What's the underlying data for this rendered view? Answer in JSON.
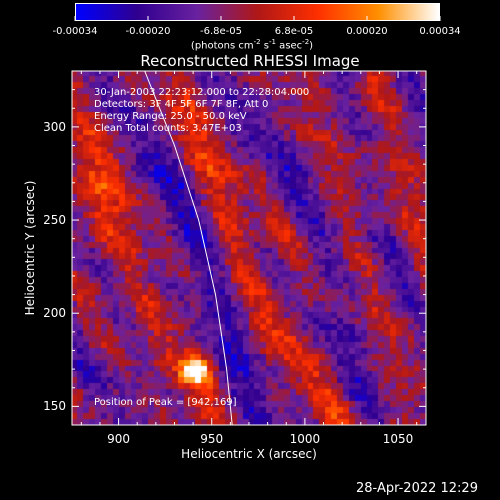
{
  "colorbar": {
    "labels": [
      "-0.00034",
      "-0.00020",
      "-6.8e-05",
      "6.8e-05",
      "0.00020",
      "0.00034"
    ],
    "units_text": "(photons cm",
    "units_exp1": "-2",
    "units_mid": " s",
    "units_exp2": "-1",
    "units_end": " asec",
    "units_exp3": "-2",
    "units_close": ")",
    "range": [
      -0.00034,
      0.00034
    ],
    "colors": [
      "#0000ff",
      "#300090",
      "#6a22a0",
      "#b01818",
      "#ff3000",
      "#ff9000",
      "#ffffff"
    ]
  },
  "chart_data": {
    "type": "heatmap",
    "title": "Reconstructed RHESSI Image",
    "xlabel": "Heliocentric X (arcsec)",
    "ylabel": "Heliocentric Y (arcsec)",
    "xlim": [
      875,
      1065
    ],
    "ylim": [
      140,
      330
    ],
    "xticks": [
      "900",
      "950",
      "1000",
      "1050"
    ],
    "yticks": [
      "150",
      "200",
      "250",
      "300"
    ],
    "xtick_values": [
      900,
      950,
      1000,
      1050
    ],
    "ytick_values": [
      150,
      200,
      250,
      300
    ],
    "peak": {
      "x": 942,
      "y": 169
    },
    "limb_curve": [
      [
        914,
        330
      ],
      [
        930,
        290
      ],
      [
        943,
        250
      ],
      [
        952,
        210
      ],
      [
        958,
        170
      ],
      [
        961,
        140
      ]
    ],
    "annotations": {
      "time": "30-Jan-2003 22:23:12.000 to 22:28:04.000",
      "detectors": "Detectors: 3F 4F 5F 6F 7F 8F, Att 0",
      "energy": "Energy Range: 25.0 - 50.0 keV",
      "clean": "Clean      Total counts: 3.47E+03",
      "peak_text": "Position of Peak = [942,169]"
    }
  },
  "footer": {
    "timestamp": "28-Apr-2022 12:29"
  }
}
